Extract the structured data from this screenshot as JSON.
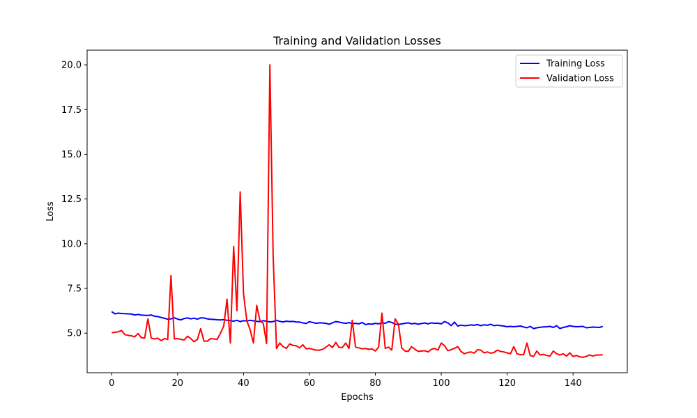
{
  "chart_data": {
    "type": "line",
    "title": "Training and Validation Losses",
    "xlabel": "Epochs",
    "ylabel": "Loss",
    "xlim": [
      -7.45,
      156.45
    ],
    "ylim": [
      2.79,
      20.82
    ],
    "xticks": [
      0,
      20,
      40,
      60,
      80,
      100,
      120,
      140
    ],
    "yticks": [
      5.0,
      7.5,
      10.0,
      12.5,
      15.0,
      17.5,
      20.0
    ],
    "xtick_labels": [
      "0",
      "20",
      "40",
      "60",
      "80",
      "100",
      "120",
      "140"
    ],
    "ytick_labels": [
      "5.0",
      "7.5",
      "10.0",
      "12.5",
      "15.0",
      "17.5",
      "20.0"
    ],
    "grid": false,
    "legend_position": "top-right",
    "x": [
      0,
      1,
      2,
      3,
      4,
      5,
      6,
      7,
      8,
      9,
      10,
      11,
      12,
      13,
      14,
      15,
      16,
      17,
      18,
      19,
      20,
      21,
      22,
      23,
      24,
      25,
      26,
      27,
      28,
      29,
      30,
      31,
      32,
      33,
      34,
      35,
      36,
      37,
      38,
      39,
      40,
      41,
      42,
      43,
      44,
      45,
      46,
      47,
      48,
      49,
      50,
      51,
      52,
      53,
      54,
      55,
      56,
      57,
      58,
      59,
      60,
      61,
      62,
      63,
      64,
      65,
      66,
      67,
      68,
      69,
      70,
      71,
      72,
      73,
      74,
      75,
      76,
      77,
      78,
      79,
      80,
      81,
      82,
      83,
      84,
      85,
      86,
      87,
      88,
      89,
      90,
      91,
      92,
      93,
      94,
      95,
      96,
      97,
      98,
      99,
      100,
      101,
      102,
      103,
      104,
      105,
      106,
      107,
      108,
      109,
      110,
      111,
      112,
      113,
      114,
      115,
      116,
      117,
      118,
      119,
      120,
      121,
      122,
      123,
      124,
      125,
      126,
      127,
      128,
      129,
      130,
      131,
      132,
      133,
      134,
      135,
      136,
      137,
      138,
      139,
      140,
      141,
      142,
      143,
      144,
      145,
      146,
      147,
      148,
      149
    ],
    "series": [
      {
        "name": "Training Loss",
        "color": "#0000ff",
        "values": [
          6.2,
          6.08,
          6.12,
          6.1,
          6.09,
          6.08,
          6.07,
          6.02,
          6.05,
          6.01,
          6.0,
          5.99,
          6.02,
          5.95,
          5.93,
          5.88,
          5.83,
          5.78,
          5.8,
          5.86,
          5.79,
          5.74,
          5.82,
          5.85,
          5.8,
          5.84,
          5.78,
          5.86,
          5.85,
          5.8,
          5.78,
          5.77,
          5.75,
          5.74,
          5.76,
          5.72,
          5.7,
          5.67,
          5.72,
          5.65,
          5.7,
          5.68,
          5.72,
          5.69,
          5.66,
          5.64,
          5.7,
          5.67,
          5.63,
          5.65,
          5.72,
          5.66,
          5.63,
          5.67,
          5.65,
          5.66,
          5.63,
          5.62,
          5.58,
          5.54,
          5.64,
          5.6,
          5.55,
          5.58,
          5.57,
          5.55,
          5.5,
          5.58,
          5.65,
          5.62,
          5.58,
          5.55,
          5.59,
          5.53,
          5.55,
          5.52,
          5.6,
          5.48,
          5.52,
          5.5,
          5.55,
          5.52,
          5.58,
          5.55,
          5.65,
          5.6,
          5.5,
          5.48,
          5.52,
          5.55,
          5.58,
          5.52,
          5.55,
          5.5,
          5.54,
          5.57,
          5.52,
          5.58,
          5.55,
          5.56,
          5.52,
          5.65,
          5.58,
          5.42,
          5.62,
          5.4,
          5.45,
          5.42,
          5.43,
          5.46,
          5.44,
          5.48,
          5.42,
          5.47,
          5.44,
          5.5,
          5.42,
          5.45,
          5.42,
          5.4,
          5.36,
          5.38,
          5.36,
          5.38,
          5.4,
          5.35,
          5.3,
          5.38,
          5.26,
          5.3,
          5.33,
          5.35,
          5.36,
          5.38,
          5.32,
          5.42,
          5.26,
          5.32,
          5.36,
          5.42,
          5.38,
          5.36,
          5.37,
          5.38,
          5.3,
          5.32,
          5.34,
          5.33,
          5.32,
          5.38
        ]
      },
      {
        "name": "Validation Loss",
        "color": "#ff0000",
        "values": [
          5.03,
          5.05,
          5.08,
          5.15,
          4.92,
          4.88,
          4.85,
          4.8,
          4.98,
          4.75,
          4.72,
          5.8,
          4.72,
          4.68,
          4.72,
          4.58,
          4.7,
          4.65,
          8.22,
          4.68,
          4.7,
          4.65,
          4.62,
          4.83,
          4.7,
          4.52,
          4.65,
          5.25,
          4.55,
          4.55,
          4.7,
          4.68,
          4.65,
          5.0,
          5.4,
          6.9,
          4.45,
          9.85,
          6.25,
          12.9,
          7.2,
          5.7,
          5.2,
          4.45,
          6.55,
          5.7,
          5.55,
          4.42,
          20.0,
          9.3,
          4.15,
          4.45,
          4.25,
          4.15,
          4.4,
          4.32,
          4.3,
          4.18,
          4.35,
          4.12,
          4.15,
          4.1,
          4.05,
          4.05,
          4.1,
          4.22,
          4.35,
          4.2,
          4.48,
          4.2,
          4.2,
          4.45,
          4.15,
          5.72,
          4.22,
          4.18,
          4.12,
          4.15,
          4.1,
          4.12,
          4.0,
          4.22,
          6.12,
          4.15,
          4.22,
          4.05,
          5.8,
          5.5,
          4.18,
          4.0,
          3.98,
          4.25,
          4.1,
          3.98,
          4.0,
          4.02,
          3.95,
          4.1,
          4.15,
          4.05,
          4.45,
          4.3,
          4.02,
          4.08,
          4.15,
          4.25,
          3.98,
          3.85,
          3.92,
          3.95,
          3.88,
          4.08,
          4.05,
          3.9,
          3.95,
          3.88,
          3.92,
          4.05,
          3.98,
          3.95,
          3.9,
          3.85,
          4.25,
          3.85,
          3.8,
          3.8,
          4.45,
          3.75,
          3.7,
          4.0,
          3.78,
          3.82,
          3.75,
          3.72,
          4.0,
          3.85,
          3.78,
          3.85,
          3.72,
          3.9,
          3.7,
          3.75,
          3.68,
          3.65,
          3.7,
          3.78,
          3.72,
          3.78,
          3.78,
          3.8
        ]
      }
    ]
  }
}
